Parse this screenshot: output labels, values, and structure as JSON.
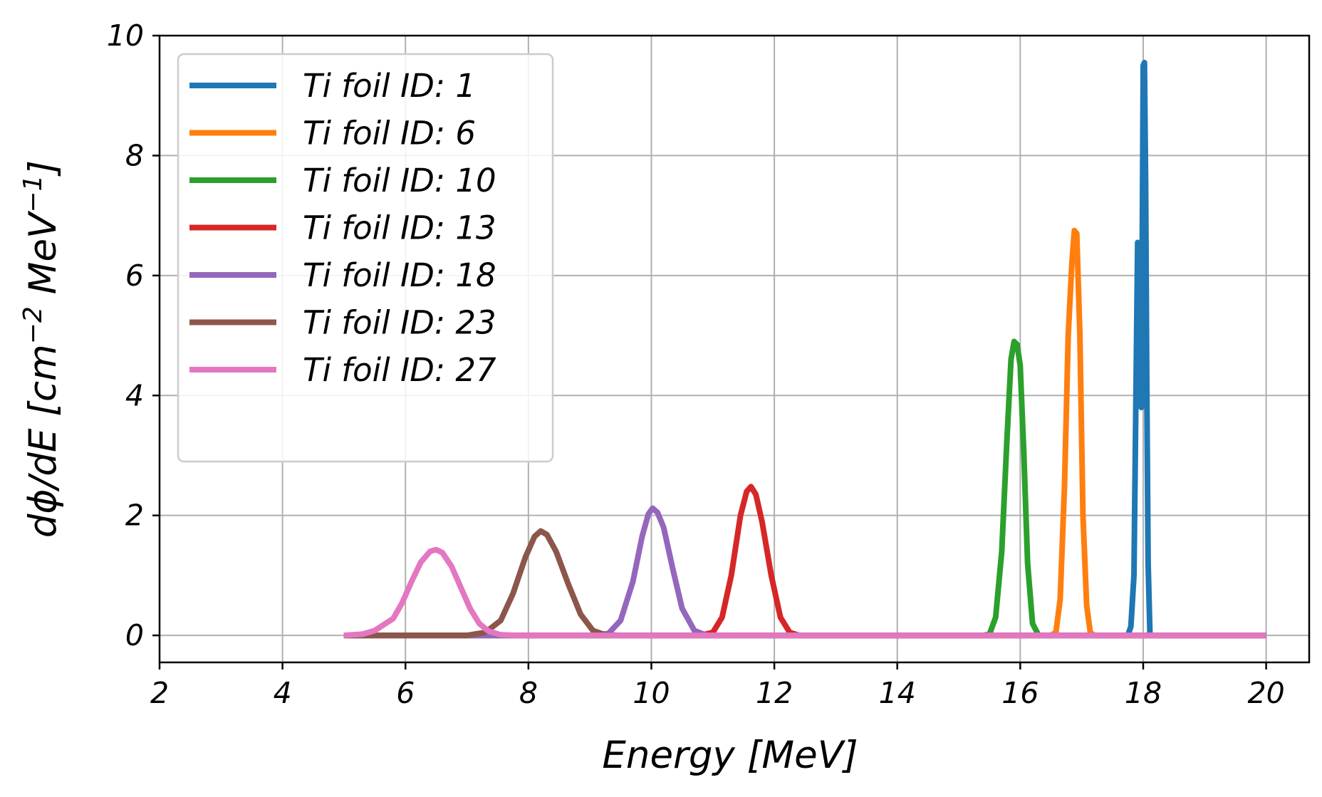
{
  "chart_data": {
    "type": "line",
    "title": "",
    "xlabel": "Energy [MeV]",
    "ylabel_parts": [
      "dϕ/dE [cm",
      "−2",
      " MeV",
      "−1",
      "]"
    ],
    "xlim": [
      2,
      20.7
    ],
    "ylim": [
      -0.45,
      10
    ],
    "xticks": [
      2,
      4,
      6,
      8,
      10,
      12,
      14,
      16,
      18,
      20
    ],
    "yticks": [
      0,
      2,
      4,
      6,
      8,
      10
    ],
    "grid": true,
    "legend_position": "upper-left",
    "series": [
      {
        "name": "Ti foil ID: 1",
        "color": "#1f77b4",
        "x": [
          5.0,
          17.75,
          17.8,
          17.85,
          17.88,
          17.91,
          17.94,
          17.97,
          18.0,
          18.02,
          18.04,
          18.06,
          18.08,
          18.11,
          20.0
        ],
        "y": [
          0,
          0,
          0.15,
          1.0,
          3.8,
          6.55,
          5.5,
          3.8,
          9.5,
          9.55,
          7.5,
          4.0,
          1.2,
          0,
          0
        ]
      },
      {
        "name": "Ti foil ID: 6",
        "color": "#ff7f0e",
        "x": [
          5.0,
          16.5,
          16.58,
          16.65,
          16.72,
          16.78,
          16.84,
          16.88,
          16.92,
          16.97,
          17.02,
          17.08,
          17.14,
          17.2,
          20.0
        ],
        "y": [
          0,
          0,
          0.05,
          0.6,
          2.5,
          5.0,
          6.2,
          6.75,
          6.7,
          5.0,
          2.0,
          0.5,
          0.05,
          0,
          0
        ]
      },
      {
        "name": "Ti foil ID: 10",
        "color": "#2ca02c",
        "x": [
          5.0,
          15.4,
          15.5,
          15.6,
          15.7,
          15.78,
          15.85,
          15.9,
          15.95,
          16.0,
          16.06,
          16.12,
          16.2,
          16.3,
          20.0
        ],
        "y": [
          0,
          0,
          0.02,
          0.3,
          1.4,
          3.2,
          4.6,
          4.9,
          4.85,
          4.5,
          3.0,
          1.2,
          0.2,
          0,
          0
        ]
      },
      {
        "name": "Ti foil ID: 13",
        "color": "#d62728",
        "x": [
          5.0,
          10.8,
          11.0,
          11.15,
          11.3,
          11.45,
          11.55,
          11.62,
          11.7,
          11.8,
          11.95,
          12.1,
          12.25,
          12.4,
          20.0
        ],
        "y": [
          0,
          0,
          0.05,
          0.3,
          1.0,
          2.0,
          2.4,
          2.48,
          2.35,
          1.9,
          1.0,
          0.3,
          0.05,
          0,
          0
        ]
      },
      {
        "name": "Ti foil ID: 18",
        "color": "#9467bd",
        "x": [
          5.0,
          9.0,
          9.3,
          9.5,
          9.7,
          9.85,
          9.95,
          10.02,
          10.1,
          10.2,
          10.35,
          10.5,
          10.7,
          10.9,
          20.0
        ],
        "y": [
          0,
          0,
          0.03,
          0.25,
          0.9,
          1.65,
          2.02,
          2.12,
          2.05,
          1.8,
          1.1,
          0.45,
          0.08,
          0,
          0
        ]
      },
      {
        "name": "Ti foil ID: 23",
        "color": "#8c564b",
        "x": [
          5.0,
          7.0,
          7.3,
          7.55,
          7.75,
          7.95,
          8.1,
          8.2,
          8.3,
          8.45,
          8.65,
          8.85,
          9.05,
          9.25,
          9.5,
          20.0
        ],
        "y": [
          0,
          0,
          0.05,
          0.25,
          0.7,
          1.3,
          1.65,
          1.74,
          1.68,
          1.4,
          0.85,
          0.35,
          0.08,
          0.01,
          0,
          0
        ]
      },
      {
        "name": "Ti foil ID: 27",
        "color": "#e377c2",
        "x": [
          5.0,
          5.3,
          5.5,
          5.65,
          5.8,
          5.95,
          6.1,
          6.25,
          6.4,
          6.5,
          6.6,
          6.75,
          6.9,
          7.05,
          7.2,
          7.35,
          7.55,
          7.8,
          20.0
        ],
        "y": [
          0,
          0.02,
          0.08,
          0.18,
          0.28,
          0.55,
          0.9,
          1.22,
          1.4,
          1.43,
          1.38,
          1.15,
          0.8,
          0.45,
          0.2,
          0.07,
          0.01,
          0,
          0
        ]
      }
    ]
  }
}
